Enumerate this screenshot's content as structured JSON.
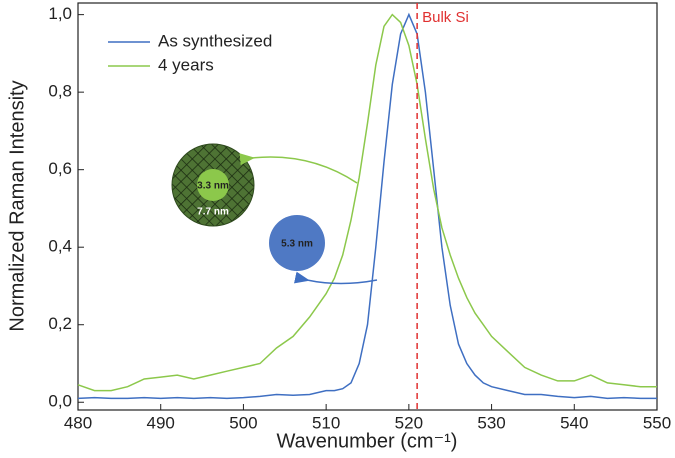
{
  "chart_data": {
    "type": "line",
    "x_label": "Wavenumber (cm⁻¹)",
    "y_label": "Normalized Raman Intensity",
    "xlim": [
      480,
      550
    ],
    "ylim": [
      -0.02,
      1.03
    ],
    "xticks": [
      480,
      490,
      500,
      510,
      520,
      530,
      540,
      550
    ],
    "yticks": [
      {
        "value": 0,
        "label": "0,0"
      },
      {
        "value": 0.2,
        "label": "0,2"
      },
      {
        "value": 0.4,
        "label": "0,4"
      },
      {
        "value": 0.6,
        "label": "0,6"
      },
      {
        "value": 0.8,
        "label": "0,8"
      },
      {
        "value": 1,
        "label": "1,0"
      }
    ],
    "x": [
      480,
      482,
      484,
      486,
      488,
      490,
      492,
      494,
      496,
      498,
      500,
      502,
      504,
      506,
      508,
      510,
      511,
      512,
      513,
      514,
      515,
      516,
      517,
      518,
      519,
      520,
      521,
      522,
      523,
      524,
      525,
      526,
      527,
      528,
      529,
      530,
      532,
      534,
      536,
      538,
      540,
      542,
      544,
      546,
      548,
      550
    ],
    "series": [
      {
        "name": "As synthesized",
        "color": "#3f6fc2",
        "values": [
          0.01,
          0.012,
          0.01,
          0.01,
          0.012,
          0.01,
          0.012,
          0.01,
          0.012,
          0.01,
          0.012,
          0.015,
          0.02,
          0.018,
          0.02,
          0.03,
          0.03,
          0.035,
          0.05,
          0.1,
          0.2,
          0.4,
          0.62,
          0.82,
          0.95,
          1.0,
          0.95,
          0.8,
          0.6,
          0.4,
          0.25,
          0.15,
          0.1,
          0.07,
          0.05,
          0.04,
          0.03,
          0.02,
          0.02,
          0.015,
          0.012,
          0.015,
          0.01,
          0.012,
          0.01,
          0.01
        ]
      },
      {
        "name": "4 years",
        "color": "#8cc84b",
        "values": [
          0.045,
          0.03,
          0.03,
          0.04,
          0.06,
          0.065,
          0.07,
          0.06,
          0.07,
          0.08,
          0.09,
          0.1,
          0.14,
          0.17,
          0.22,
          0.28,
          0.32,
          0.38,
          0.47,
          0.58,
          0.72,
          0.87,
          0.97,
          1.0,
          0.98,
          0.92,
          0.82,
          0.68,
          0.55,
          0.45,
          0.38,
          0.32,
          0.27,
          0.23,
          0.2,
          0.17,
          0.13,
          0.09,
          0.07,
          0.055,
          0.055,
          0.07,
          0.05,
          0.045,
          0.04,
          0.04
        ]
      }
    ],
    "reference_line": {
      "x": 521,
      "label": "Bulk Si",
      "color": "#e03030"
    },
    "annotations": [
      "3.3 nm",
      "7.7 nm",
      "5.3 nm"
    ],
    "legend": "upper-left"
  }
}
